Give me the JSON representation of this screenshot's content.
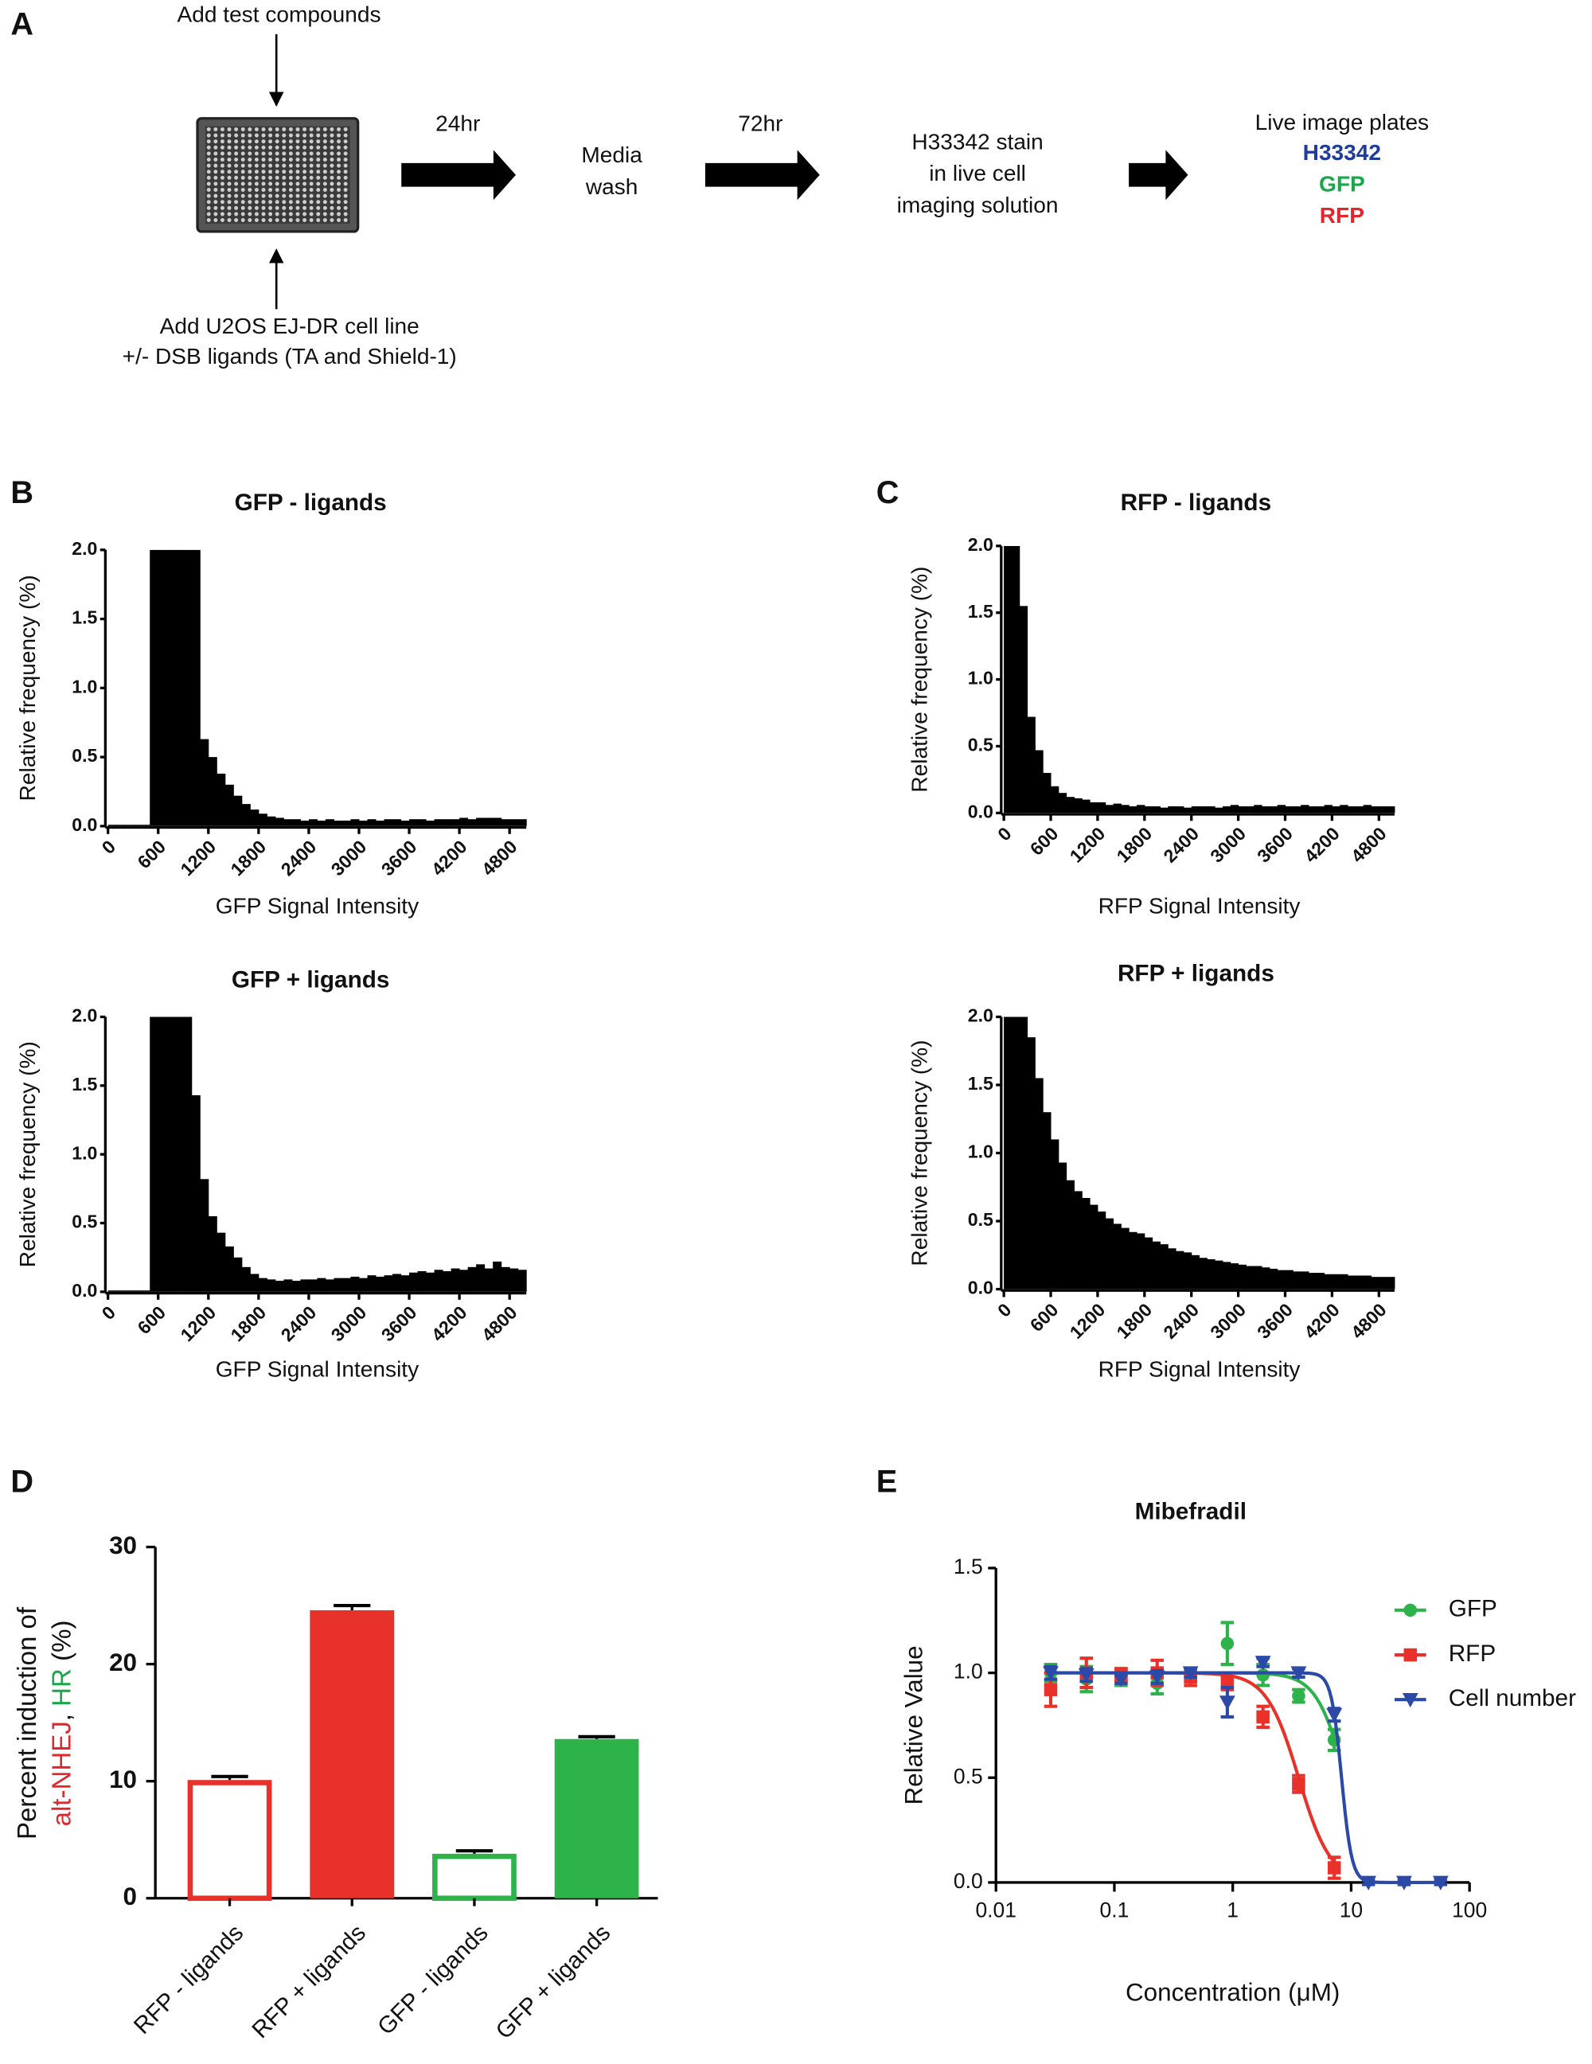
{
  "diagram": {
    "panel_label": "A",
    "top_label": "Add test compounds",
    "bottom_label": [
      "Add U2OS EJ-DR cell line",
      "+/- DSB ligands (TA and Shield-1)"
    ],
    "arrow_labels": [
      "24hr",
      "72hr"
    ],
    "step1": [
      "Media",
      "wash"
    ],
    "step2": [
      "H33342 stain",
      "in live cell",
      "imaging solution"
    ],
    "step3": {
      "title": "Live image plates",
      "channels": [
        {
          "text": "H33342",
          "color": "#1f3c99"
        },
        {
          "text": "GFP",
          "color": "#1aa64a"
        },
        {
          "text": "RFP",
          "color": "#e3262b"
        }
      ]
    }
  },
  "panel_labels": [
    "B",
    "C",
    "D",
    "E"
  ],
  "chart_data": [
    {
      "type": "histogram",
      "title": "GFP - ligands",
      "xlabel": "GFP Signal Intensity",
      "ylabel": "Relative frequency (%)",
      "color": "#000000",
      "bins": [
        0,
        100,
        200,
        300,
        400,
        500,
        600,
        700,
        800,
        900,
        1000,
        1100,
        1200,
        1300,
        1400,
        1500,
        1600,
        1700,
        1800,
        1900,
        2000,
        2100,
        2200,
        2300,
        2400,
        2500,
        2600,
        2700,
        2800,
        2900,
        3000,
        3100,
        3200,
        3300,
        3400,
        3500,
        3600,
        3700,
        3800,
        3900,
        4000,
        4100,
        4200,
        4300,
        4400,
        4500,
        4600,
        4700,
        4800,
        4900,
        5000
      ],
      "values": [
        0.01,
        0.01,
        0.01,
        0.01,
        0.01,
        2,
        2,
        2,
        2,
        2,
        2,
        0.63,
        0.5,
        0.38,
        0.3,
        0.22,
        0.16,
        0.12,
        0.09,
        0.07,
        0.06,
        0.05,
        0.05,
        0.04,
        0.05,
        0.04,
        0.05,
        0.04,
        0.04,
        0.05,
        0.04,
        0.05,
        0.04,
        0.05,
        0.05,
        0.04,
        0.05,
        0.05,
        0.04,
        0.05,
        0.05,
        0.05,
        0.06,
        0.05,
        0.06,
        0.06,
        0.06,
        0.05,
        0.05,
        0.05
      ],
      "xlim": [
        0,
        5000
      ],
      "xticks": [
        0,
        600,
        1200,
        1800,
        2400,
        3000,
        3600,
        4200,
        4800
      ],
      "ylim": [
        0,
        2
      ],
      "yticks": [
        {
          "value": 0,
          "label": "0.0"
        },
        0.5,
        {
          "value": 1,
          "label": "1.0"
        },
        1.5,
        {
          "value": 2,
          "label": "2.0"
        }
      ]
    },
    {
      "type": "histogram",
      "title": "GFP + ligands",
      "xlabel": "GFP Signal Intensity",
      "ylabel": "Relative frequency (%)",
      "color": "#000000",
      "bins": [
        0,
        100,
        200,
        300,
        400,
        500,
        600,
        700,
        800,
        900,
        1000,
        1100,
        1200,
        1300,
        1400,
        1500,
        1600,
        1700,
        1800,
        1900,
        2000,
        2100,
        2200,
        2300,
        2400,
        2500,
        2600,
        2700,
        2800,
        2900,
        3000,
        3100,
        3200,
        3300,
        3400,
        3500,
        3600,
        3700,
        3800,
        3900,
        4000,
        4100,
        4200,
        4300,
        4400,
        4500,
        4600,
        4700,
        4800,
        4900,
        5000
      ],
      "values": [
        0.01,
        0.01,
        0.01,
        0.01,
        0.01,
        2,
        2,
        2,
        2,
        2,
        1.43,
        0.82,
        0.55,
        0.43,
        0.33,
        0.25,
        0.18,
        0.13,
        0.1,
        0.09,
        0.08,
        0.09,
        0.08,
        0.09,
        0.09,
        0.1,
        0.09,
        0.1,
        0.1,
        0.11,
        0.1,
        0.12,
        0.11,
        0.12,
        0.13,
        0.12,
        0.14,
        0.15,
        0.14,
        0.16,
        0.15,
        0.17,
        0.16,
        0.18,
        0.2,
        0.17,
        0.22,
        0.18,
        0.17,
        0.16
      ],
      "xlim": [
        0,
        5000
      ],
      "xticks": [
        0,
        600,
        1200,
        1800,
        2400,
        3000,
        3600,
        4200,
        4800
      ],
      "ylim": [
        0,
        2
      ],
      "yticks": [
        {
          "value": 0,
          "label": "0.0"
        },
        0.5,
        {
          "value": 1,
          "label": "1.0"
        },
        1.5,
        {
          "value": 2,
          "label": "2.0"
        }
      ]
    },
    {
      "type": "histogram",
      "title": "RFP - ligands",
      "xlabel": "RFP Signal Intensity",
      "ylabel": "Relative frequency (%)",
      "color": "#000000",
      "bins": [
        0,
        100,
        200,
        300,
        400,
        500,
        600,
        700,
        800,
        900,
        1000,
        1100,
        1200,
        1300,
        1400,
        1500,
        1600,
        1700,
        1800,
        1900,
        2000,
        2100,
        2200,
        2300,
        2400,
        2500,
        2600,
        2700,
        2800,
        2900,
        3000,
        3100,
        3200,
        3300,
        3400,
        3500,
        3600,
        3700,
        3800,
        3900,
        4000,
        4100,
        4200,
        4300,
        4400,
        4500,
        4600,
        4700,
        4800,
        4900,
        5000
      ],
      "values": [
        2,
        2,
        1.55,
        0.72,
        0.47,
        0.3,
        0.2,
        0.15,
        0.12,
        0.11,
        0.1,
        0.08,
        0.08,
        0.06,
        0.07,
        0.06,
        0.05,
        0.06,
        0.05,
        0.05,
        0.04,
        0.05,
        0.05,
        0.04,
        0.05,
        0.05,
        0.05,
        0.04,
        0.05,
        0.06,
        0.05,
        0.05,
        0.06,
        0.05,
        0.05,
        0.06,
        0.05,
        0.05,
        0.06,
        0.05,
        0.05,
        0.06,
        0.05,
        0.06,
        0.05,
        0.05,
        0.06,
        0.05,
        0.05,
        0.05
      ],
      "xlim": [
        0,
        5000
      ],
      "xticks": [
        0,
        600,
        1200,
        1800,
        2400,
        3000,
        3600,
        4200,
        4800
      ],
      "ylim": [
        0,
        2
      ],
      "yticks": [
        {
          "value": 0,
          "label": "0.0"
        },
        0.5,
        {
          "value": 1,
          "label": "1.0"
        },
        1.5,
        {
          "value": 2,
          "label": "2.0"
        }
      ]
    },
    {
      "type": "histogram",
      "title": "RFP + ligands",
      "xlabel": "RFP Signal Intensity",
      "ylabel": "Relative frequency (%)",
      "color": "#000000",
      "bins": [
        0,
        100,
        200,
        300,
        400,
        500,
        600,
        700,
        800,
        900,
        1000,
        1100,
        1200,
        1300,
        1400,
        1500,
        1600,
        1700,
        1800,
        1900,
        2000,
        2100,
        2200,
        2300,
        2400,
        2500,
        2600,
        2700,
        2800,
        2900,
        3000,
        3100,
        3200,
        3300,
        3400,
        3500,
        3600,
        3700,
        3800,
        3900,
        4000,
        4100,
        4200,
        4300,
        4400,
        4500,
        4600,
        4700,
        4800,
        4900,
        5000
      ],
      "values": [
        2,
        2,
        2,
        1.85,
        1.55,
        1.3,
        1.1,
        0.93,
        0.8,
        0.72,
        0.67,
        0.62,
        0.57,
        0.52,
        0.48,
        0.45,
        0.42,
        0.41,
        0.38,
        0.35,
        0.33,
        0.3,
        0.28,
        0.27,
        0.25,
        0.23,
        0.22,
        0.21,
        0.2,
        0.19,
        0.18,
        0.17,
        0.17,
        0.16,
        0.15,
        0.14,
        0.14,
        0.13,
        0.13,
        0.12,
        0.12,
        0.11,
        0.11,
        0.11,
        0.1,
        0.1,
        0.1,
        0.09,
        0.09,
        0.09
      ],
      "xlim": [
        0,
        5000
      ],
      "xticks": [
        0,
        600,
        1200,
        1800,
        2400,
        3000,
        3600,
        4200,
        4800
      ],
      "ylim": [
        0,
        2
      ],
      "yticks": [
        {
          "value": 0,
          "label": "0.0"
        },
        0.5,
        {
          "value": 1,
          "label": "1.0"
        },
        1.5,
        {
          "value": 2,
          "label": "2.0"
        }
      ]
    },
    {
      "type": "bar",
      "ylabel_line1": "Percent induction of",
      "ylabel_parts": [
        {
          "text": "alt-NHEJ",
          "color": "#e3262b"
        },
        {
          "text": ", ",
          "color": "#111111"
        },
        {
          "text": "HR",
          "color": "#1aa64a"
        },
        {
          "text": " (%)",
          "color": "#111111"
        }
      ],
      "categories": [
        "RFP - ligands",
        "RFP + ligands",
        "GFP - ligands",
        "GFP + ligands"
      ],
      "values": [
        10.1,
        24.6,
        3.8,
        13.6
      ],
      "errors": [
        0.3,
        0.4,
        0.25,
        0.2
      ],
      "colors": [
        "#e8312a",
        "#e8312a",
        "#2db34a",
        "#2db34a"
      ],
      "filled": [
        false,
        true,
        false,
        true
      ],
      "ylim": [
        0,
        30
      ],
      "yticks": [
        0,
        10,
        20,
        30
      ]
    },
    {
      "type": "scatter",
      "title": "Mibefradil",
      "xlabel": "Concentration (μM)",
      "ylabel": "Relative Value",
      "xscale": "log",
      "x": [
        0.029,
        0.058,
        0.114,
        0.23,
        0.44,
        0.9,
        1.8,
        3.6,
        7.2,
        14,
        28,
        57
      ],
      "series": [
        {
          "name": "GFP",
          "color": "#2db34a",
          "marker": "circle",
          "values": [
            1.0,
            0.97,
            0.98,
            0.95,
            0.99,
            1.14,
            0.99,
            0.89,
            0.68,
            null,
            null,
            null
          ],
          "errors": [
            0.04,
            0.06,
            0.04,
            0.05,
            0.03,
            0.1,
            0.05,
            0.03,
            0.05,
            null,
            null,
            null
          ],
          "fit": {
            "ic50": 9,
            "hill": 3.5
          }
        },
        {
          "name": "RFP",
          "color": "#e8312a",
          "marker": "square",
          "values": [
            0.92,
            1.0,
            0.99,
            1.0,
            0.98,
            0.95,
            0.79,
            0.47,
            0.07,
            null,
            null,
            null
          ],
          "errors": [
            0.08,
            0.07,
            0.03,
            0.06,
            0.04,
            0.03,
            0.05,
            0.04,
            0.05,
            null,
            null,
            null
          ],
          "fit": {
            "ic50": 3.6,
            "hill": 3.2
          }
        },
        {
          "name": "Cell number",
          "color": "#2b4aa8",
          "marker": "triangle-down",
          "values": [
            1.0,
            0.99,
            0.97,
            0.98,
            1.0,
            0.86,
            1.05,
            1.0,
            0.8,
            0.0,
            0.0,
            0.0
          ],
          "errors": [
            0.03,
            0.03,
            0.02,
            0.03,
            0.02,
            0.07,
            0.02,
            0.02,
            0.03,
            0.01,
            0.01,
            0.01
          ],
          "fit": {
            "ic50": 8.3,
            "hill": 10
          }
        }
      ],
      "xlim": [
        0.01,
        100
      ],
      "xticks": [
        0.01,
        0.1,
        1,
        10,
        100
      ],
      "ylim": [
        0,
        1.5
      ],
      "yticks": [
        {
          "value": 0,
          "label": "0.0"
        },
        0.5,
        {
          "value": 1,
          "label": "1.0"
        },
        1.5
      ]
    }
  ]
}
